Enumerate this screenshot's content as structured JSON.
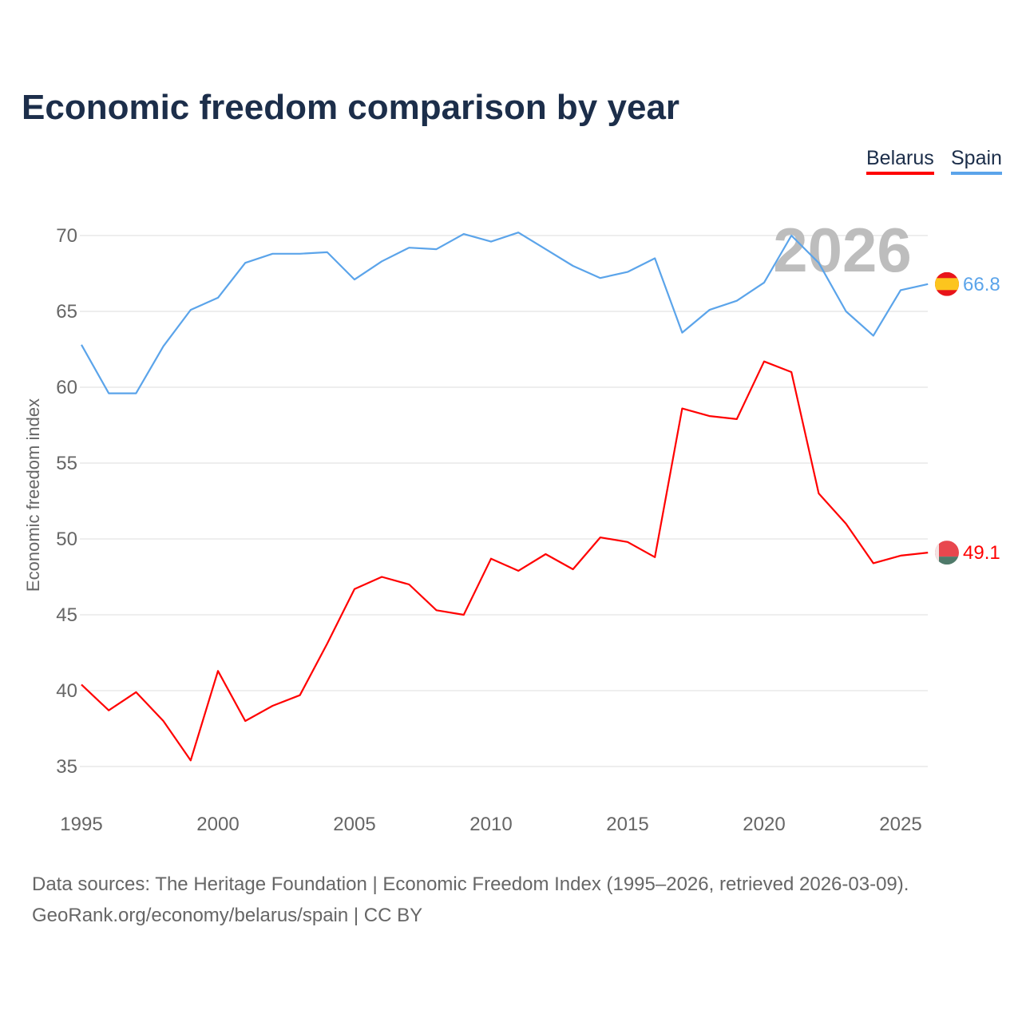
{
  "title": "Economic freedom comparison by year",
  "legend": [
    {
      "label": "Belarus",
      "color": "#ff0000"
    },
    {
      "label": "Spain",
      "color": "#5ba4ea"
    }
  ],
  "source_line1": "Data sources: The Heritage Foundation | Economic Freedom Index (1995–2026, retrieved 2026-03-09).",
  "source_line2": "GeoRank.org/economy/belarus/spain | CC BY",
  "chart_data": {
    "type": "line",
    "title": "Economic freedom comparison by year",
    "xlabel": "",
    "ylabel": "Economic freedom index",
    "watermark_year": "2026",
    "xlim": [
      1995,
      2026
    ],
    "ylim": [
      33,
      72
    ],
    "xticks": [
      1995,
      2000,
      2005,
      2010,
      2015,
      2020,
      2025
    ],
    "yticks": [
      35,
      40,
      45,
      50,
      55,
      60,
      65,
      70
    ],
    "grid": true,
    "legend_position": "top-right",
    "x": [
      1995,
      1996,
      1997,
      1998,
      1999,
      2000,
      2001,
      2002,
      2003,
      2004,
      2005,
      2006,
      2007,
      2008,
      2009,
      2010,
      2011,
      2012,
      2013,
      2014,
      2015,
      2016,
      2017,
      2018,
      2019,
      2020,
      2021,
      2022,
      2023,
      2024,
      2025,
      2026
    ],
    "series": [
      {
        "name": "Spain",
        "color": "#5ba4ea",
        "end_label": "66.8",
        "values": [
          62.8,
          59.6,
          59.6,
          62.7,
          65.1,
          65.9,
          68.2,
          68.8,
          68.8,
          68.9,
          67.1,
          68.3,
          69.2,
          69.1,
          70.1,
          69.6,
          70.2,
          69.1,
          68.0,
          67.2,
          67.6,
          68.5,
          63.6,
          65.1,
          65.7,
          66.9,
          70.0,
          68.2,
          65.0,
          63.4,
          66.4,
          66.8
        ]
      },
      {
        "name": "Belarus",
        "color": "#ff0000",
        "end_label": "49.1",
        "values": [
          40.4,
          38.7,
          39.9,
          38.0,
          35.4,
          41.3,
          38.0,
          39.0,
          39.7,
          43.1,
          46.7,
          47.5,
          47.0,
          45.3,
          45.0,
          48.7,
          47.9,
          49.0,
          48.0,
          50.1,
          49.8,
          48.8,
          58.6,
          58.1,
          57.9,
          61.7,
          61.0,
          53.0,
          51.0,
          48.4,
          48.9,
          49.1
        ]
      }
    ]
  }
}
